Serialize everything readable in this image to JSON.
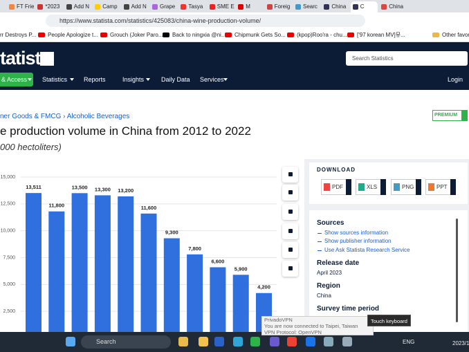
{
  "browser": {
    "tabs": [
      "FT Friend",
      "*2023",
      "Add N",
      "Camp",
      "Add N",
      "Grape",
      "Tasya",
      "SME E",
      "M",
      "Foreig",
      "Searc",
      "China",
      "C",
      "China"
    ],
    "url": "https://www.statista.com/statistics/425083/china-wine-production-volume/",
    "bookmarks": [
      "rr Destroys P...",
      "People Apologize t...",
      "Grouch (Joker Paro...",
      "Back to ningxia @ni...",
      "Chipmunk Gets So...",
      "(kpop)Roo'ra - chu...",
      "['97 korean MV]뮤...",
      "Other favorit"
    ]
  },
  "site": {
    "logo": "tatista",
    "search_placeholder": "Search Statistics",
    "nav": [
      "& Access",
      "Statistics",
      "Reports",
      "Insights",
      "Daily Data",
      "Services",
      "Login"
    ]
  },
  "page": {
    "breadcrumb": "ner Goods & FMCG › Alcoholic Beverages",
    "badge": "PREMIUM",
    "title": "e production volume in China from 2012 to 2022",
    "subtitle": "000 hectoliters)"
  },
  "chart": {
    "type": "bar",
    "color": "#2f6fde",
    "values": [
      13511,
      11800,
      13500,
      13300,
      13200,
      11600,
      9300,
      7800,
      6600,
      5900,
      4200
    ],
    "value_labels": [
      "13,511",
      "11,800",
      "13,500",
      "13,300",
      "13,200",
      "11,600",
      "9,300",
      "7,800",
      "6,600",
      "5,900",
      "4,200"
    ],
    "ylim": [
      0,
      15000
    ],
    "yticks": [
      {
        "value": 2500,
        "label": "2,500"
      },
      {
        "value": 5000,
        "label": "5,000"
      },
      {
        "value": 7500,
        "label": "7,500"
      },
      {
        "value": 10000,
        "label": "10,000"
      },
      {
        "value": 12500,
        "label": "12,500"
      },
      {
        "value": 15000,
        "label": "15,000"
      }
    ],
    "grid": true
  },
  "download": {
    "heading": "DOWNLOAD",
    "formats": [
      "PDF",
      "XLS",
      "PNG",
      "PPT"
    ]
  },
  "details": {
    "sources_heading": "Sources",
    "source_links": [
      "Show sources information",
      "Show publisher information",
      "Use Ask Statista Research Service"
    ],
    "release_heading": "Release date",
    "release": "April 2023",
    "region_heading": "Region",
    "region": "China",
    "survey_heading": "Survey time period"
  },
  "tooltip": [
    "PrivadoVPN",
    "You are now connected to Taipei, Taiwan",
    "VPN Protocol: OpenVPN"
  ],
  "touch_keyboard": "Touch keyboard",
  "taskbar": {
    "search": "Search",
    "language": "ENG",
    "clock": "2023/1"
  }
}
